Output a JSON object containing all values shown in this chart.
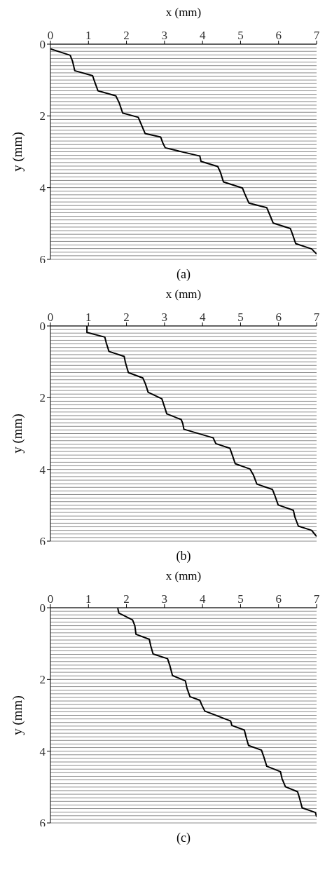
{
  "chart_data": [
    {
      "type": "line",
      "xlabel": "x (mm)",
      "ylabel": "y (mm)",
      "annotations": [
        "(a)"
      ],
      "xlim": [
        0,
        7
      ],
      "xticks": [
        0,
        1,
        2,
        3,
        4,
        5,
        6,
        7
      ],
      "ylim": [
        6,
        0
      ],
      "yticks": [
        0,
        {
          "value": 0.1,
          "label": null
        },
        {
          "value": 0.2,
          "label": null
        },
        {
          "value": 0.3,
          "label": null
        },
        {
          "value": 0.4,
          "label": null
        },
        {
          "value": 0.5,
          "label": null
        },
        {
          "value": 0.6,
          "label": null
        },
        {
          "value": 0.7,
          "label": null
        },
        {
          "value": 0.8,
          "label": null
        },
        {
          "value": 0.9,
          "label": null
        },
        {
          "value": 1,
          "label": null
        },
        {
          "value": 1.1,
          "label": null
        },
        {
          "value": 1.2,
          "label": null
        },
        {
          "value": 1.3,
          "label": null
        },
        {
          "value": 1.4,
          "label": null
        },
        {
          "value": 1.5,
          "label": null
        },
        {
          "value": 1.6,
          "label": null
        },
        {
          "value": 1.7,
          "label": null
        },
        {
          "value": 1.8,
          "label": null
        },
        {
          "value": 1.9,
          "label": null
        },
        2,
        {
          "value": 2.1,
          "label": null
        },
        {
          "value": 2.2,
          "label": null
        },
        {
          "value": 2.3,
          "label": null
        },
        {
          "value": 2.4,
          "label": null
        },
        {
          "value": 2.5,
          "label": null
        },
        {
          "value": 2.6,
          "label": null
        },
        {
          "value": 2.7,
          "label": null
        },
        {
          "value": 2.8,
          "label": null
        },
        {
          "value": 2.9,
          "label": null
        },
        {
          "value": 3,
          "label": null
        },
        {
          "value": 3.1,
          "label": null
        },
        {
          "value": 3.2,
          "label": null
        },
        {
          "value": 3.3,
          "label": null
        },
        {
          "value": 3.4,
          "label": null
        },
        {
          "value": 3.5,
          "label": null
        },
        {
          "value": 3.6,
          "label": null
        },
        {
          "value": 3.7,
          "label": null
        },
        {
          "value": 3.8,
          "label": null
        },
        {
          "value": 3.9,
          "label": null
        },
        4,
        {
          "value": 4.1,
          "label": null
        },
        {
          "value": 4.2,
          "label": null
        },
        {
          "value": 4.3,
          "label": null
        },
        {
          "value": 4.4,
          "label": null
        },
        {
          "value": 4.5,
          "label": null
        },
        {
          "value": 4.6,
          "label": null
        },
        {
          "value": 4.7,
          "label": null
        },
        {
          "value": 4.8,
          "label": null
        },
        {
          "value": 4.9,
          "label": null
        },
        {
          "value": 5,
          "label": null
        },
        {
          "value": 5.1,
          "label": null
        },
        {
          "value": 5.2,
          "label": null
        },
        {
          "value": 5.3,
          "label": null
        },
        {
          "value": 5.4,
          "label": null
        },
        {
          "value": 5.5,
          "label": null
        },
        {
          "value": 5.6,
          "label": null
        },
        {
          "value": 5.7,
          "label": null
        },
        {
          "value": 5.8,
          "label": null
        },
        {
          "value": 5.9,
          "label": null
        },
        6
      ],
      "grid": "y",
      "marker": "none",
      "line_style": "solid",
      "series": [
        {
          "color": "#000000",
          "x": [
            0,
            0.52,
            0.58,
            0.64,
            1.11,
            1.16,
            1.25,
            1.72,
            1.81,
            1.9,
            2.31,
            2.39,
            2.49,
            2.9,
            2.95,
            3.02,
            3.93,
            3.96,
            4.4,
            4.47,
            4.55,
            5.05,
            5.11,
            5.22,
            5.69,
            5.75,
            5.86,
            6.31,
            6.37,
            6.45,
            6.87,
            7
          ],
          "values": [
            0.13,
            0.31,
            0.47,
            0.74,
            0.88,
            1.04,
            1.3,
            1.44,
            1.64,
            1.92,
            2.04,
            2.24,
            2.49,
            2.59,
            2.74,
            2.89,
            3.12,
            3.27,
            3.41,
            3.57,
            3.84,
            4.01,
            4.17,
            4.43,
            4.56,
            4.71,
            4.99,
            5.14,
            5.31,
            5.56,
            5.71,
            5.85
          ]
        }
      ]
    },
    {
      "type": "line",
      "xlabel": "x (mm)",
      "ylabel": "y (mm)",
      "annotations": [
        "(b)"
      ],
      "xlim": [
        0,
        7
      ],
      "xticks": [
        0,
        1,
        2,
        3,
        4,
        5,
        6,
        7
      ],
      "ylim": [
        6,
        0
      ],
      "yticks": [
        0,
        {
          "value": 0.1,
          "label": null
        },
        {
          "value": 0.2,
          "label": null
        },
        {
          "value": 0.3,
          "label": null
        },
        {
          "value": 0.4,
          "label": null
        },
        {
          "value": 0.5,
          "label": null
        },
        {
          "value": 0.6,
          "label": null
        },
        {
          "value": 0.7,
          "label": null
        },
        {
          "value": 0.8,
          "label": null
        },
        {
          "value": 0.9,
          "label": null
        },
        {
          "value": 1,
          "label": null
        },
        {
          "value": 1.1,
          "label": null
        },
        {
          "value": 1.2,
          "label": null
        },
        {
          "value": 1.3,
          "label": null
        },
        {
          "value": 1.4,
          "label": null
        },
        {
          "value": 1.5,
          "label": null
        },
        {
          "value": 1.6,
          "label": null
        },
        {
          "value": 1.7,
          "label": null
        },
        {
          "value": 1.8,
          "label": null
        },
        {
          "value": 1.9,
          "label": null
        },
        2,
        {
          "value": 2.1,
          "label": null
        },
        {
          "value": 2.2,
          "label": null
        },
        {
          "value": 2.3,
          "label": null
        },
        {
          "value": 2.4,
          "label": null
        },
        {
          "value": 2.5,
          "label": null
        },
        {
          "value": 2.6,
          "label": null
        },
        {
          "value": 2.7,
          "label": null
        },
        {
          "value": 2.8,
          "label": null
        },
        {
          "value": 2.9,
          "label": null
        },
        {
          "value": 3,
          "label": null
        },
        {
          "value": 3.1,
          "label": null
        },
        {
          "value": 3.2,
          "label": null
        },
        {
          "value": 3.3,
          "label": null
        },
        {
          "value": 3.4,
          "label": null
        },
        {
          "value": 3.5,
          "label": null
        },
        {
          "value": 3.6,
          "label": null
        },
        {
          "value": 3.7,
          "label": null
        },
        {
          "value": 3.8,
          "label": null
        },
        {
          "value": 3.9,
          "label": null
        },
        4,
        {
          "value": 4.1,
          "label": null
        },
        {
          "value": 4.2,
          "label": null
        },
        {
          "value": 4.3,
          "label": null
        },
        {
          "value": 4.4,
          "label": null
        },
        {
          "value": 4.5,
          "label": null
        },
        {
          "value": 4.6,
          "label": null
        },
        {
          "value": 4.7,
          "label": null
        },
        {
          "value": 4.8,
          "label": null
        },
        {
          "value": 4.9,
          "label": null
        },
        {
          "value": 5,
          "label": null
        },
        {
          "value": 5.1,
          "label": null
        },
        {
          "value": 5.2,
          "label": null
        },
        {
          "value": 5.3,
          "label": null
        },
        {
          "value": 5.4,
          "label": null
        },
        {
          "value": 5.5,
          "label": null
        },
        {
          "value": 5.6,
          "label": null
        },
        {
          "value": 5.7,
          "label": null
        },
        {
          "value": 5.8,
          "label": null
        },
        {
          "value": 5.9,
          "label": null
        },
        6
      ],
      "grid": "y",
      "marker": "none",
      "line_style": "solid",
      "series": [
        {
          "color": "#000000",
          "x": [
            0.96,
            0.96,
            1.43,
            1.47,
            1.54,
            1.94,
            1.97,
            2.05,
            2.43,
            2.5,
            2.57,
            2.93,
            2.99,
            3.06,
            3.44,
            3.48,
            3.51,
            4.28,
            4.35,
            4.72,
            4.78,
            4.86,
            5.25,
            5.34,
            5.43,
            5.84,
            5.9,
            5.99,
            6.39,
            6.43,
            6.52,
            6.87,
            7
          ],
          "values": [
            0,
            0.18,
            0.31,
            0.48,
            0.71,
            0.85,
            1.01,
            1.3,
            1.45,
            1.62,
            1.85,
            2.03,
            2.22,
            2.45,
            2.61,
            2.72,
            2.88,
            3.12,
            3.28,
            3.41,
            3.59,
            3.84,
            3.99,
            4.16,
            4.41,
            4.56,
            4.72,
            4.99,
            5.14,
            5.33,
            5.58,
            5.7,
            5.87
          ]
        }
      ]
    },
    {
      "type": "line",
      "xlabel": "x (mm)",
      "ylabel": "y (mm)",
      "annotations": [
        "(c)"
      ],
      "xlim": [
        0,
        7
      ],
      "xticks": [
        0,
        1,
        2,
        3,
        4,
        5,
        6,
        7
      ],
      "ylim": [
        6,
        0
      ],
      "yticks": [
        0,
        {
          "value": 0.1,
          "label": null
        },
        {
          "value": 0.2,
          "label": null
        },
        {
          "value": 0.3,
          "label": null
        },
        {
          "value": 0.4,
          "label": null
        },
        {
          "value": 0.5,
          "label": null
        },
        {
          "value": 0.6,
          "label": null
        },
        {
          "value": 0.7,
          "label": null
        },
        {
          "value": 0.8,
          "label": null
        },
        {
          "value": 0.9,
          "label": null
        },
        {
          "value": 1,
          "label": null
        },
        {
          "value": 1.1,
          "label": null
        },
        {
          "value": 1.2,
          "label": null
        },
        {
          "value": 1.3,
          "label": null
        },
        {
          "value": 1.4,
          "label": null
        },
        {
          "value": 1.5,
          "label": null
        },
        {
          "value": 1.6,
          "label": null
        },
        {
          "value": 1.7,
          "label": null
        },
        {
          "value": 1.8,
          "label": null
        },
        {
          "value": 1.9,
          "label": null
        },
        2,
        {
          "value": 2.1,
          "label": null
        },
        {
          "value": 2.2,
          "label": null
        },
        {
          "value": 2.3,
          "label": null
        },
        {
          "value": 2.4,
          "label": null
        },
        {
          "value": 2.5,
          "label": null
        },
        {
          "value": 2.6,
          "label": null
        },
        {
          "value": 2.7,
          "label": null
        },
        {
          "value": 2.8,
          "label": null
        },
        {
          "value": 2.9,
          "label": null
        },
        {
          "value": 3,
          "label": null
        },
        {
          "value": 3.1,
          "label": null
        },
        {
          "value": 3.2,
          "label": null
        },
        {
          "value": 3.3,
          "label": null
        },
        {
          "value": 3.4,
          "label": null
        },
        {
          "value": 3.5,
          "label": null
        },
        {
          "value": 3.6,
          "label": null
        },
        {
          "value": 3.7,
          "label": null
        },
        {
          "value": 3.8,
          "label": null
        },
        {
          "value": 3.9,
          "label": null
        },
        4,
        {
          "value": 4.1,
          "label": null
        },
        {
          "value": 4.2,
          "label": null
        },
        {
          "value": 4.3,
          "label": null
        },
        {
          "value": 4.4,
          "label": null
        },
        {
          "value": 4.5,
          "label": null
        },
        {
          "value": 4.6,
          "label": null
        },
        {
          "value": 4.7,
          "label": null
        },
        {
          "value": 4.8,
          "label": null
        },
        {
          "value": 4.9,
          "label": null
        },
        {
          "value": 5,
          "label": null
        },
        {
          "value": 5.1,
          "label": null
        },
        {
          "value": 5.2,
          "label": null
        },
        {
          "value": 5.3,
          "label": null
        },
        {
          "value": 5.4,
          "label": null
        },
        {
          "value": 5.5,
          "label": null
        },
        {
          "value": 5.6,
          "label": null
        },
        {
          "value": 5.7,
          "label": null
        },
        {
          "value": 5.8,
          "label": null
        },
        {
          "value": 5.9,
          "label": null
        },
        6
      ],
      "grid": "y",
      "marker": "none",
      "line_style": "solid",
      "series": [
        {
          "color": "#000000",
          "x": [
            1.77,
            1.8,
            2.16,
            2.22,
            2.25,
            2.6,
            2.64,
            2.7,
            3.08,
            3.14,
            3.21,
            3.55,
            3.59,
            3.67,
            3.93,
            3.98,
            4.06,
            4.74,
            4.77,
            5.1,
            5.15,
            5.21,
            5.55,
            5.6,
            5.69,
            6.05,
            6.09,
            6.18,
            6.5,
            6.55,
            6.62,
            6.97,
            7
          ],
          "values": [
            0.01,
            0.15,
            0.34,
            0.5,
            0.74,
            0.88,
            1.07,
            1.29,
            1.42,
            1.61,
            1.89,
            2.04,
            2.24,
            2.48,
            2.58,
            2.71,
            2.88,
            3.16,
            3.28,
            3.41,
            3.62,
            3.84,
            3.97,
            4.12,
            4.42,
            4.57,
            4.76,
            4.99,
            5.13,
            5.3,
            5.58,
            5.71,
            5.83
          ]
        }
      ]
    }
  ]
}
